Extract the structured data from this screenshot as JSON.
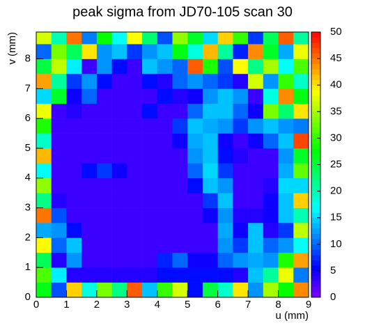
{
  "chart_data": {
    "type": "heatmap",
    "title": "peak sigma from JD70-105 scan 30",
    "xlabel": "u (mm)",
    "ylabel": "v (mm)",
    "xlim": [
      0,
      9
    ],
    "ylim": [
      0,
      8.9
    ],
    "zlim": [
      0,
      50
    ],
    "xticks": [
      0,
      1,
      2,
      3,
      4,
      5,
      6,
      7,
      8,
      9
    ],
    "yticks": [
      0,
      1,
      2,
      3,
      4,
      5,
      6,
      7,
      8
    ],
    "zticks": [
      0,
      5,
      10,
      15,
      20,
      25,
      30,
      35,
      40,
      45,
      50
    ],
    "x_edges": [
      0,
      0.5,
      1,
      1.5,
      2,
      2.5,
      3,
      3.5,
      4,
      4.5,
      5,
      5.5,
      6,
      6.5,
      7,
      7.5,
      8,
      8.5,
      9
    ],
    "y_edges": [
      0,
      0.5,
      1,
      1.5,
      2,
      2.5,
      3,
      3.5,
      4,
      4.5,
      5,
      5.5,
      6,
      6.5,
      7,
      7.5,
      8,
      8.5,
      8.9
    ],
    "z": [
      [
        27,
        9,
        41,
        18,
        33,
        22,
        46,
        14,
        30,
        37,
        6,
        25,
        19,
        40,
        12,
        35,
        28,
        44
      ],
      [
        31,
        16,
        4,
        4,
        4,
        4,
        4,
        4,
        6,
        6,
        6,
        6,
        6,
        4,
        14,
        21,
        38,
        11
      ],
      [
        24,
        4,
        12,
        3,
        3,
        3,
        3,
        3,
        7,
        10,
        5,
        5,
        10,
        12,
        13,
        12,
        29,
        43
      ],
      [
        39,
        10,
        14,
        3,
        3,
        3,
        3,
        3,
        3,
        3,
        3,
        3,
        12,
        8,
        14,
        10,
        12,
        17
      ],
      [
        13,
        12,
        6,
        3,
        3,
        3,
        3,
        3,
        3,
        3,
        3,
        3,
        13,
        5,
        14,
        4,
        8,
        36
      ],
      [
        45,
        9,
        3,
        3,
        3,
        3,
        3,
        3,
        3,
        3,
        3,
        5,
        12,
        4,
        4,
        5,
        14,
        20
      ],
      [
        22,
        4,
        3,
        3,
        3,
        3,
        3,
        3,
        3,
        3,
        3,
        8,
        14,
        3,
        3,
        5,
        14,
        41
      ],
      [
        34,
        3,
        3,
        3,
        3,
        3,
        3,
        3,
        3,
        3,
        6,
        14,
        12,
        3,
        3,
        4,
        15,
        15
      ],
      [
        17,
        3,
        3,
        6,
        8,
        5,
        3,
        3,
        3,
        3,
        10,
        15,
        8,
        3,
        3,
        3,
        13,
        32
      ],
      [
        42,
        3,
        3,
        3,
        3,
        3,
        3,
        3,
        3,
        3,
        12,
        14,
        6,
        4,
        3,
        3,
        12,
        26
      ],
      [
        19,
        3,
        3,
        3,
        3,
        3,
        3,
        3,
        3,
        5,
        13,
        14,
        5,
        3,
        5,
        10,
        14,
        47
      ],
      [
        29,
        3,
        3,
        3,
        3,
        3,
        3,
        3,
        3,
        8,
        14,
        13,
        12,
        8,
        12,
        14,
        12,
        11
      ],
      [
        38,
        3,
        4,
        3,
        3,
        3,
        3,
        6,
        3,
        3,
        10,
        14,
        14,
        10,
        5,
        33,
        23,
        40
      ],
      [
        15,
        26,
        5,
        10,
        3,
        3,
        3,
        3,
        6,
        4,
        5,
        12,
        14,
        12,
        3,
        18,
        44,
        27
      ],
      [
        43,
        21,
        8,
        12,
        6,
        3,
        3,
        6,
        4,
        10,
        12,
        10,
        8,
        4,
        37,
        12,
        30,
        19
      ],
      [
        25,
        36,
        16,
        3,
        12,
        6,
        3,
        14,
        12,
        10,
        46,
        29,
        9,
        39,
        22,
        35,
        17,
        31
      ],
      [
        10,
        33,
        24,
        40,
        12,
        14,
        8,
        12,
        14,
        27,
        18,
        42,
        21,
        7,
        44,
        26,
        13,
        38
      ],
      [
        37,
        20,
        45,
        11,
        28,
        17,
        39,
        23,
        9,
        34,
        26,
        15,
        41,
        30,
        8,
        24,
        46,
        21
      ]
    ]
  }
}
